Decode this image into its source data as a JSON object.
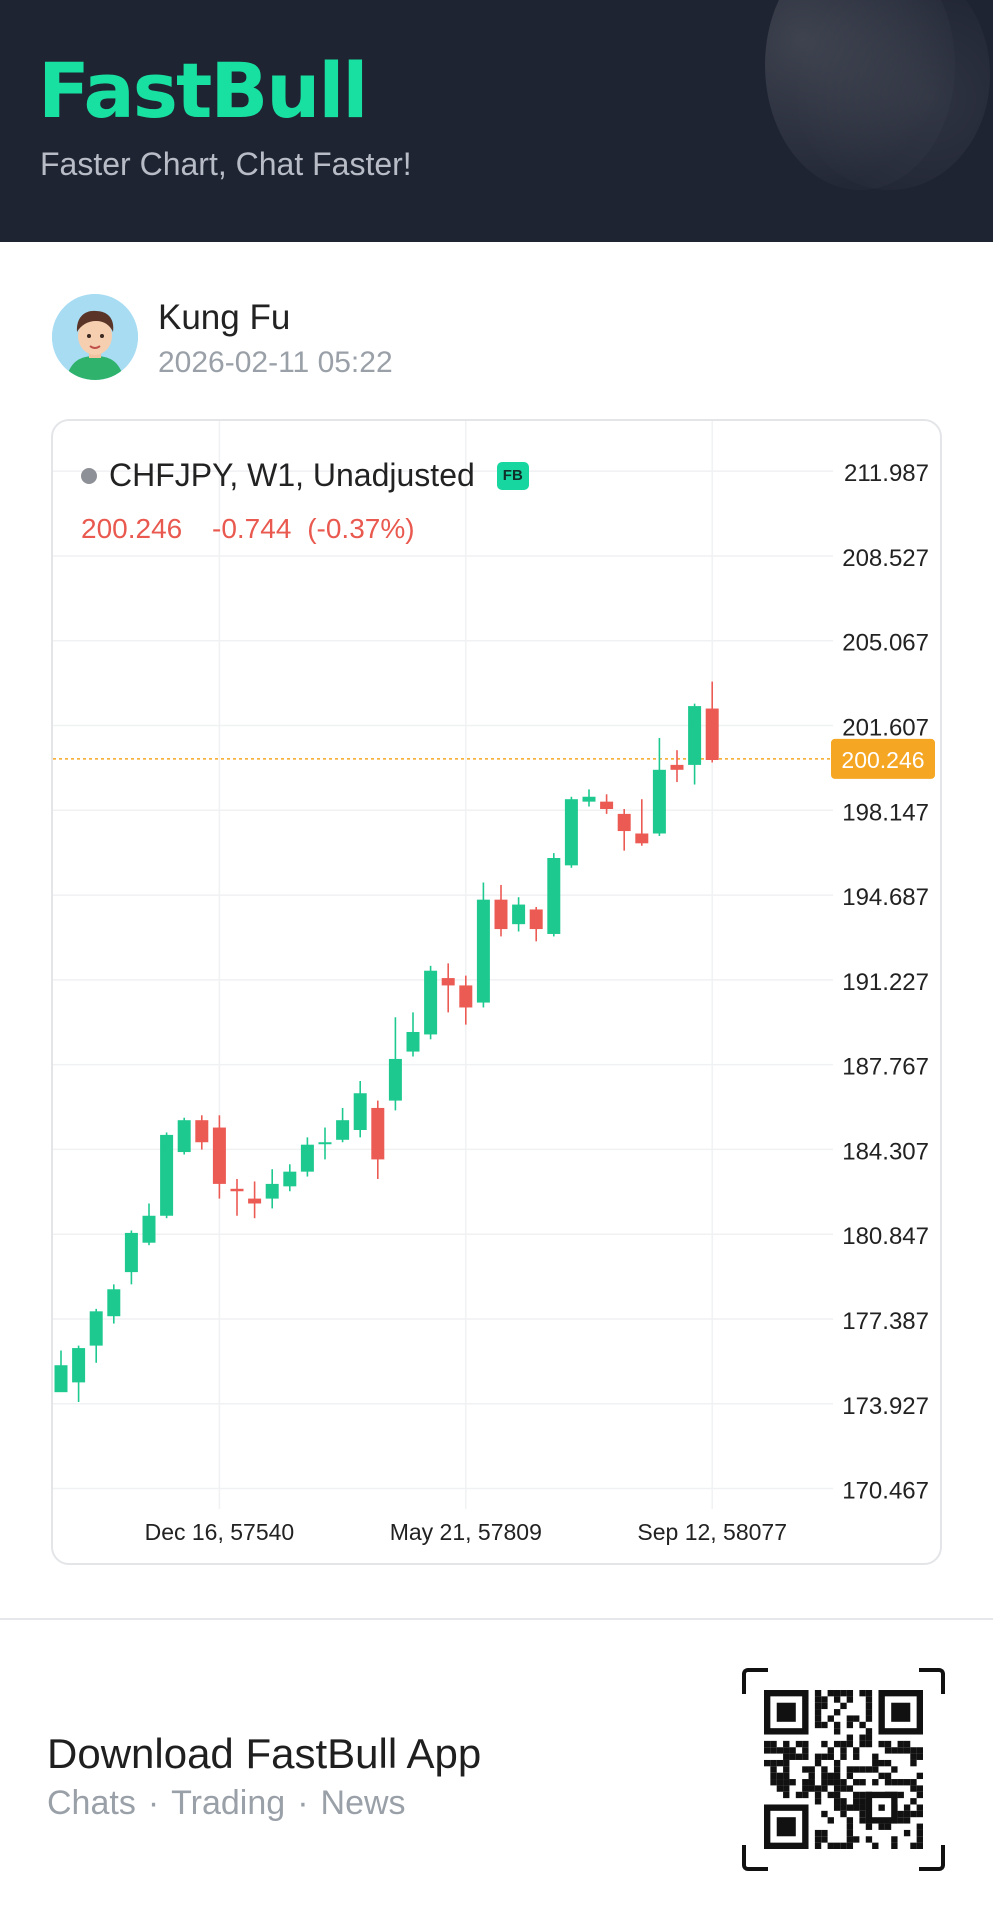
{
  "header": {
    "brand": "FastBull",
    "tagline": "Faster Chart, Chat Faster!"
  },
  "post": {
    "user_name": "Kung Fu",
    "timestamp": "2026-02-11 05:22"
  },
  "chart_data": {
    "type": "candlestick",
    "symbol": "CHFJPY, W1, Unadjusted",
    "badge": "FB",
    "last_price": "200.246",
    "change": "-0.744",
    "change_pct": "(-0.37%)",
    "y_ticks": [
      "211.987",
      "208.527",
      "205.067",
      "201.607",
      "198.147",
      "194.687",
      "191.227",
      "187.767",
      "184.307",
      "180.847",
      "177.387",
      "173.927",
      "170.467"
    ],
    "ylim": [
      168.0,
      213.3
    ],
    "x_ticks": [
      {
        "label": "Dec 16, 57540",
        "index": 9
      },
      {
        "label": "May 21, 57809",
        "index": 23
      },
      {
        "label": "Sep 12, 58077",
        "index": 37
      }
    ],
    "current_price_value": 200.246,
    "grid": true,
    "colors": {
      "up": "#1ec98f",
      "down": "#ec5a54",
      "price_line": "#f5a623",
      "grid": "#f0f1f3"
    },
    "candles": [
      [
        174.4,
        175.5,
        174.6,
        176.1
      ],
      [
        174.8,
        176.2,
        174.0,
        176.3
      ],
      [
        176.3,
        177.7,
        175.6,
        177.8
      ],
      [
        177.5,
        178.6,
        177.2,
        178.8
      ],
      [
        179.3,
        180.9,
        178.8,
        181.0
      ],
      [
        180.5,
        181.6,
        180.4,
        182.1
      ],
      [
        181.6,
        184.9,
        181.5,
        185.0
      ],
      [
        184.2,
        185.5,
        184.1,
        185.6
      ],
      [
        185.5,
        184.6,
        184.3,
        185.7
      ],
      [
        185.2,
        182.9,
        182.3,
        185.7
      ],
      [
        182.7,
        182.6,
        181.6,
        183.1
      ],
      [
        182.3,
        182.1,
        181.5,
        183.0
      ],
      [
        182.3,
        182.9,
        181.9,
        183.5
      ],
      [
        182.8,
        183.4,
        182.6,
        183.7
      ],
      [
        183.4,
        184.5,
        183.2,
        184.8
      ],
      [
        184.6,
        184.6,
        183.9,
        185.2
      ],
      [
        184.7,
        185.5,
        184.6,
        186.0
      ],
      [
        185.1,
        186.6,
        184.8,
        187.1
      ],
      [
        186.0,
        183.9,
        183.1,
        186.3
      ],
      [
        186.3,
        188.0,
        185.9,
        189.7
      ],
      [
        188.3,
        189.1,
        188.1,
        189.9
      ],
      [
        189.0,
        191.6,
        188.8,
        191.8
      ],
      [
        191.3,
        191.0,
        189.9,
        191.9
      ],
      [
        191.0,
        190.1,
        189.4,
        191.4
      ],
      [
        190.3,
        194.5,
        190.1,
        195.2
      ],
      [
        194.5,
        193.3,
        193.0,
        195.1
      ],
      [
        193.5,
        194.3,
        193.2,
        194.6
      ],
      [
        194.1,
        193.3,
        192.8,
        194.2
      ],
      [
        193.1,
        196.2,
        193.0,
        196.4
      ],
      [
        195.9,
        198.6,
        195.8,
        198.7
      ],
      [
        198.5,
        198.7,
        198.3,
        199.0
      ],
      [
        198.5,
        198.2,
        198.0,
        198.8
      ],
      [
        198.0,
        197.3,
        196.5,
        198.2
      ],
      [
        197.2,
        196.8,
        196.7,
        198.6
      ],
      [
        197.2,
        199.8,
        197.1,
        201.1
      ],
      [
        200.0,
        199.8,
        199.3,
        200.6
      ],
      [
        200.0,
        202.4,
        199.2,
        202.5
      ],
      [
        202.3,
        200.2,
        200.1,
        203.4
      ]
    ]
  },
  "footer": {
    "title": "Download FastBull App",
    "links": [
      "Chats",
      "Trading",
      "News"
    ],
    "link_separator": "·"
  }
}
